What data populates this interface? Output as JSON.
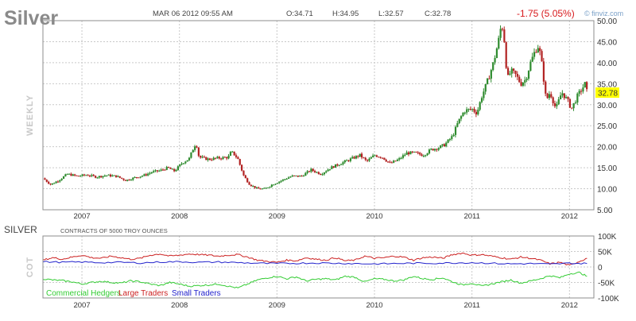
{
  "header": {
    "title": "Silver",
    "date": "MAR 06 2012 09:55 AM",
    "open": "O:34.71",
    "high": "H:34.95",
    "low": "L:32.57",
    "close": "C:32.78",
    "change": "-1.75 (5.05%)",
    "brand": "© finviz.com"
  },
  "colors": {
    "up": "#2e8b2e",
    "down": "#b22222",
    "commercial": "#33cc33",
    "large": "#cc2222",
    "small": "#2222cc",
    "last_price_bg": "#ffff00"
  },
  "chart_data": [
    {
      "type": "candlestick",
      "period_label": "WEEKLY",
      "x_tick_labels": [
        "2007",
        "2008",
        "2009",
        "2010",
        "2011",
        "2012"
      ],
      "y_tick_labels": [
        "5.00",
        "10.00",
        "15.00",
        "20.00",
        "25.00",
        "30.00",
        "35.00",
        "40.00",
        "45.00",
        "50.00"
      ],
      "ylim": [
        5,
        50
      ],
      "xlim": [
        2006.6,
        2012.25
      ],
      "last_price": "32.78",
      "grid": true,
      "series": [
        {
          "x": [
            2006.6,
            2006.68,
            2006.76,
            2006.85,
            2006.95,
            2007.05,
            2007.15,
            2007.25,
            2007.35,
            2007.45,
            2007.55,
            2007.65,
            2007.72,
            2007.8,
            2007.88,
            2007.95,
            2008.02,
            2008.1,
            2008.13,
            2008.17,
            2008.2,
            2008.3,
            2008.4,
            2008.5,
            2008.53,
            2008.57,
            2008.6,
            2008.66,
            2008.72,
            2008.8,
            2008.88,
            2008.95,
            2009.05,
            2009.15,
            2009.25,
            2009.35,
            2009.45,
            2009.55,
            2009.65,
            2009.75,
            2009.85,
            2009.92,
            2010.0,
            2010.08,
            2010.16,
            2010.25,
            2010.33,
            2010.41,
            2010.5,
            2010.58,
            2010.66,
            2010.72,
            2010.8,
            2010.86,
            2010.92,
            2011.0,
            2011.05,
            2011.1,
            2011.15,
            2011.22,
            2011.27,
            2011.3,
            2011.32,
            2011.34,
            2011.36,
            2011.4,
            2011.45,
            2011.5,
            2011.55,
            2011.6,
            2011.65,
            2011.68,
            2011.7,
            2011.72,
            2011.76,
            2011.8,
            2011.86,
            2011.92,
            2011.98,
            2012.02,
            2012.08,
            2012.12,
            2012.16,
            2012.18
          ],
          "values": [
            12.5,
            11,
            12,
            13.5,
            13,
            13.3,
            12.8,
            13.2,
            13,
            12,
            12.7,
            13.3,
            14,
            14.3,
            15,
            14.2,
            16,
            17.2,
            19,
            21,
            17.5,
            17,
            17.3,
            17.5,
            18.8,
            18,
            17,
            13,
            11,
            10,
            10,
            11,
            12,
            13,
            13,
            14.5,
            13.5,
            15,
            16,
            17,
            18,
            16.5,
            18,
            17.5,
            16,
            17,
            18.5,
            18.5,
            18,
            19.3,
            19.8,
            20.5,
            22.5,
            26,
            28.5,
            29,
            28,
            32,
            35,
            40,
            45,
            49,
            48,
            43,
            36,
            38,
            37,
            35,
            36,
            40,
            43,
            44,
            42,
            39,
            31,
            33,
            29,
            33,
            31,
            29,
            32,
            33.5,
            35,
            32.78
          ]
        }
      ]
    },
    {
      "type": "line",
      "title": "SILVER",
      "subtitle": "CONTRACTS OF 5000 TROY OUNCES",
      "panel_label": "COT",
      "x_tick_labels": [
        "2007",
        "2008",
        "2009",
        "2010",
        "2011",
        "2012"
      ],
      "y_tick_labels": [
        "100K",
        "50K",
        "0",
        "-50K",
        "-100K"
      ],
      "ylim": [
        -100000,
        100000
      ],
      "xlim": [
        2006.6,
        2012.25
      ],
      "grid": true,
      "series": [
        {
          "name": "Commercial Hedgers",
          "x": [
            2006.6,
            2006.7,
            2006.8,
            2006.9,
            2007.0,
            2007.1,
            2007.2,
            2007.3,
            2007.4,
            2007.5,
            2007.6,
            2007.7,
            2007.8,
            2007.9,
            2008.0,
            2008.1,
            2008.2,
            2008.3,
            2008.4,
            2008.5,
            2008.6,
            2008.7,
            2008.8,
            2008.9,
            2009.0,
            2009.1,
            2009.2,
            2009.3,
            2009.4,
            2009.5,
            2009.6,
            2009.7,
            2009.8,
            2009.9,
            2010.0,
            2010.1,
            2010.2,
            2010.3,
            2010.4,
            2010.5,
            2010.6,
            2010.7,
            2010.8,
            2010.9,
            2011.0,
            2011.1,
            2011.2,
            2011.3,
            2011.4,
            2011.5,
            2011.6,
            2011.7,
            2011.8,
            2011.9,
            2012.0,
            2012.1,
            2012.18
          ],
          "values": [
            -38000,
            -42000,
            -44000,
            -48000,
            -55000,
            -50000,
            -46000,
            -50000,
            -52000,
            -45000,
            -48000,
            -55000,
            -60000,
            -50000,
            -55000,
            -62000,
            -60000,
            -58000,
            -55000,
            -62000,
            -68000,
            -55000,
            -42000,
            -35000,
            -30000,
            -38000,
            -32000,
            -45000,
            -40000,
            -38000,
            -42000,
            -30000,
            -33000,
            -48000,
            -38000,
            -40000,
            -45000,
            -42000,
            -30000,
            -38000,
            -40000,
            -35000,
            -48000,
            -58000,
            -52000,
            -62000,
            -55000,
            -48000,
            -42000,
            -52000,
            -45000,
            -38000,
            -28000,
            -35000,
            -22000,
            -18000,
            -30000
          ]
        },
        {
          "name": "Large Traders",
          "x": [
            2006.6,
            2006.7,
            2006.8,
            2006.9,
            2007.0,
            2007.1,
            2007.2,
            2007.3,
            2007.4,
            2007.5,
            2007.6,
            2007.7,
            2007.8,
            2007.9,
            2008.0,
            2008.1,
            2008.2,
            2008.3,
            2008.4,
            2008.5,
            2008.6,
            2008.7,
            2008.8,
            2008.9,
            2009.0,
            2009.1,
            2009.2,
            2009.3,
            2009.4,
            2009.5,
            2009.6,
            2009.7,
            2009.8,
            2009.9,
            2010.0,
            2010.1,
            2010.2,
            2010.3,
            2010.4,
            2010.5,
            2010.6,
            2010.7,
            2010.8,
            2010.9,
            2011.0,
            2011.1,
            2011.2,
            2011.3,
            2011.4,
            2011.5,
            2011.6,
            2011.7,
            2011.8,
            2011.9,
            2012.0,
            2012.1,
            2012.18
          ],
          "values": [
            22000,
            30000,
            25000,
            32000,
            38000,
            30000,
            28000,
            35000,
            30000,
            25000,
            28000,
            38000,
            42000,
            35000,
            38000,
            42000,
            40000,
            38000,
            35000,
            38000,
            40000,
            32000,
            22000,
            18000,
            15000,
            22000,
            20000,
            30000,
            25000,
            22000,
            30000,
            20000,
            22000,
            35000,
            28000,
            30000,
            35000,
            32000,
            22000,
            30000,
            32000,
            28000,
            40000,
            45000,
            38000,
            40000,
            35000,
            30000,
            25000,
            32000,
            28000,
            22000,
            10000,
            15000,
            5000,
            18000,
            28000
          ]
        },
        {
          "name": "Small Traders",
          "x": [
            2006.6,
            2006.8,
            2007.0,
            2007.2,
            2007.4,
            2007.6,
            2007.8,
            2008.0,
            2008.2,
            2008.4,
            2008.6,
            2008.8,
            2009.0,
            2009.2,
            2009.4,
            2009.6,
            2009.8,
            2010.0,
            2010.2,
            2010.4,
            2010.6,
            2010.8,
            2011.0,
            2011.2,
            2011.4,
            2011.6,
            2011.8,
            2012.0,
            2012.18
          ],
          "values": [
            17000,
            15000,
            16000,
            14000,
            15000,
            13000,
            16000,
            17000,
            15000,
            16000,
            14000,
            12000,
            11000,
            12000,
            13000,
            12000,
            11000,
            10000,
            11000,
            12000,
            12000,
            13000,
            14000,
            12000,
            10000,
            11000,
            9000,
            12000,
            11000
          ]
        }
      ]
    }
  ]
}
